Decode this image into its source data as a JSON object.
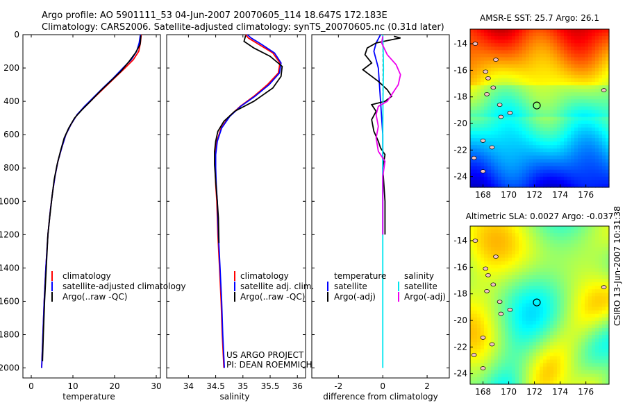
{
  "header": {
    "line1": "Argo profile: AO 5901111_53 04-Jun-2007 20070605_114 18.647S 172.183E",
    "line2": "Climatology: CARS2006. Satellite-adjusted climatology: synTS_20070605.nc (0.31d later)"
  },
  "side_stamp": "CSIRO 13-Jun-2007 10:31:38",
  "colors": {
    "climatology": "#ff0000",
    "satellite": "#0000ff",
    "argo": "#000000",
    "satellite_salinity": "#00e5ee",
    "argo_salinity": "#ee00ee"
  },
  "chart_data": [
    {
      "type": "line",
      "id": "temperature",
      "xlabel": "temperature",
      "ylabel": "depth",
      "xlim": [
        -2,
        31
      ],
      "ylim": [
        2060,
        0
      ],
      "xticks": [
        0,
        10,
        20,
        30
      ],
      "yticks": [
        0,
        200,
        400,
        600,
        800,
        1000,
        1200,
        1400,
        1600,
        1800,
        2000
      ],
      "legend": [
        "climatology",
        "satellite-adjusted climatology",
        "Argo(..raw -QC)"
      ],
      "series": [
        {
          "name": "climatology",
          "color": "climatology",
          "points": [
            [
              26.4,
              0
            ],
            [
              26.2,
              50
            ],
            [
              25.8,
              100
            ],
            [
              24.5,
              150
            ],
            [
              22.5,
              200
            ],
            [
              20,
              260
            ],
            [
              17.5,
              320
            ],
            [
              15,
              380
            ],
            [
              13,
              430
            ],
            [
              11,
              480
            ],
            [
              9.5,
              540
            ],
            [
              8.3,
              600
            ],
            [
              7.3,
              680
            ],
            [
              6.4,
              760
            ],
            [
              5.7,
              850
            ],
            [
              5.1,
              950
            ],
            [
              4.6,
              1050
            ],
            [
              4.0,
              1200
            ],
            [
              3.5,
              1400
            ],
            [
              3.1,
              1600
            ],
            [
              2.8,
              1800
            ],
            [
              2.5,
              2000
            ]
          ]
        },
        {
          "name": "satellite-adjusted climatology",
          "color": "satellite",
          "points": [
            [
              26.2,
              0
            ],
            [
              25.9,
              50
            ],
            [
              25.3,
              100
            ],
            [
              24.0,
              150
            ],
            [
              22.0,
              200
            ],
            [
              19.7,
              260
            ],
            [
              17.2,
              320
            ],
            [
              14.8,
              380
            ],
            [
              12.8,
              430
            ],
            [
              11,
              480
            ],
            [
              9.5,
              540
            ],
            [
              8.3,
              600
            ],
            [
              7.3,
              680
            ],
            [
              6.4,
              760
            ],
            [
              5.7,
              850
            ],
            [
              5.1,
              950
            ],
            [
              4.6,
              1050
            ],
            [
              4.0,
              1200
            ],
            [
              3.5,
              1400
            ],
            [
              3.1,
              1600
            ],
            [
              2.8,
              1800
            ],
            [
              2.5,
              2000
            ]
          ]
        },
        {
          "name": "Argo(..raw -QC)",
          "color": "argo",
          "points": [
            [
              26.3,
              5
            ],
            [
              26.2,
              40
            ],
            [
              26.1,
              60
            ],
            [
              25.0,
              110
            ],
            [
              23.5,
              160
            ],
            [
              21.5,
              220
            ],
            [
              19.0,
              280
            ],
            [
              16.5,
              340
            ],
            [
              14.2,
              400
            ],
            [
              12.2,
              450
            ],
            [
              10.4,
              500
            ],
            [
              9.0,
              560
            ],
            [
              7.9,
              620
            ],
            [
              7.0,
              700
            ],
            [
              6.2,
              780
            ],
            [
              5.5,
              870
            ],
            [
              5.0,
              970
            ],
            [
              4.5,
              1080
            ],
            [
              4.0,
              1200
            ],
            [
              3.6,
              1400
            ],
            [
              3.2,
              1600
            ],
            [
              2.9,
              1800
            ],
            [
              2.7,
              1960
            ]
          ]
        }
      ]
    },
    {
      "type": "line",
      "id": "salinity",
      "xlabel": "salinity",
      "ylabel": "depth",
      "xlim": [
        33.6,
        36.15
      ],
      "ylim": [
        2060,
        0
      ],
      "xticks": [
        34,
        34.5,
        35,
        35.5,
        36
      ],
      "yticks": [
        0,
        200,
        400,
        600,
        800,
        1000,
        1200,
        1400,
        1600,
        1800,
        2000
      ],
      "legend": [
        "climatology",
        "satellite adj. clim.",
        "Argo(..raw -QC)"
      ],
      "series": [
        {
          "name": "climatology",
          "color": "climatology",
          "points": [
            [
              35.05,
              0
            ],
            [
              35.1,
              20
            ],
            [
              35.3,
              60
            ],
            [
              35.55,
              110
            ],
            [
              35.68,
              170
            ],
            [
              35.65,
              230
            ],
            [
              35.45,
              300
            ],
            [
              35.2,
              370
            ],
            [
              34.95,
              430
            ],
            [
              34.75,
              490
            ],
            [
              34.6,
              560
            ],
            [
              34.52,
              640
            ],
            [
              34.49,
              720
            ],
            [
              34.49,
              800
            ],
            [
              34.5,
              900
            ],
            [
              34.52,
              1000
            ],
            [
              34.54,
              1200
            ],
            [
              34.57,
              1400
            ],
            [
              34.6,
              1600
            ],
            [
              34.62,
              1800
            ],
            [
              34.65,
              2000
            ]
          ]
        },
        {
          "name": "satellite adj. clim.",
          "color": "satellite",
          "points": [
            [
              35.08,
              0
            ],
            [
              35.15,
              20
            ],
            [
              35.35,
              60
            ],
            [
              35.58,
              110
            ],
            [
              35.7,
              170
            ],
            [
              35.67,
              230
            ],
            [
              35.48,
              300
            ],
            [
              35.22,
              370
            ],
            [
              34.96,
              430
            ],
            [
              34.76,
              490
            ],
            [
              34.61,
              560
            ],
            [
              34.53,
              640
            ],
            [
              34.5,
              720
            ],
            [
              34.5,
              800
            ],
            [
              34.51,
              900
            ],
            [
              34.53,
              1000
            ],
            [
              34.55,
              1200
            ],
            [
              34.58,
              1400
            ],
            [
              34.61,
              1600
            ],
            [
              34.63,
              1800
            ],
            [
              34.66,
              2000
            ]
          ]
        },
        {
          "name": "Argo(..raw -QC)",
          "color": "argo",
          "points": [
            [
              35.05,
              5
            ],
            [
              35.02,
              40
            ],
            [
              35.2,
              80
            ],
            [
              35.5,
              130
            ],
            [
              35.72,
              190
            ],
            [
              35.7,
              250
            ],
            [
              35.55,
              320
            ],
            [
              35.2,
              400
            ],
            [
              34.85,
              460
            ],
            [
              34.65,
              520
            ],
            [
              34.54,
              580
            ],
            [
              34.5,
              640
            ],
            [
              34.48,
              700
            ],
            [
              34.48,
              780
            ],
            [
              34.5,
              880
            ],
            [
              34.53,
              1000
            ],
            [
              34.55,
              1100
            ],
            [
              34.56,
              1250
            ]
          ]
        }
      ]
    },
    {
      "type": "line",
      "id": "difference",
      "xlabel": "difference from climatology",
      "ylabel": "depth",
      "xlim": [
        -3.2,
        3.0
      ],
      "ylim": [
        2060,
        0
      ],
      "xticks": [
        -2,
        0,
        2
      ],
      "yticks": [
        0,
        200,
        400,
        600,
        800,
        1000,
        1200,
        1400,
        1600,
        1800,
        2000
      ],
      "legend_groups": [
        {
          "title": "temperature",
          "items": [
            "satellite",
            "Argo(-adj)"
          ]
        },
        {
          "title": "salinity",
          "items": [
            "satellite",
            "Argo(-adj)"
          ]
        }
      ],
      "series": [
        {
          "name": "temperature satellite",
          "color": "satellite",
          "points": [
            [
              -0.1,
              0
            ],
            [
              -0.3,
              50
            ],
            [
              -0.4,
              100
            ],
            [
              -0.3,
              150
            ],
            [
              -0.2,
              200
            ],
            [
              -0.15,
              300
            ],
            [
              -0.1,
              400
            ],
            [
              -0.05,
              500
            ],
            [
              0,
              600
            ],
            [
              0,
              800
            ],
            [
              0,
              1000
            ],
            [
              0,
              1200
            ]
          ]
        },
        {
          "name": "temperature Argo(-adj)",
          "color": "argo",
          "points": [
            [
              0.5,
              10
            ],
            [
              0.8,
              20
            ],
            [
              0.4,
              30
            ],
            [
              -0.3,
              50
            ],
            [
              -0.7,
              80
            ],
            [
              -0.8,
              120
            ],
            [
              -0.5,
              170
            ],
            [
              -0.9,
              210
            ],
            [
              -0.6,
              240
            ],
            [
              -0.2,
              280
            ],
            [
              0.2,
              330
            ],
            [
              0.4,
              370
            ],
            [
              0.1,
              400
            ],
            [
              -0.5,
              420
            ],
            [
              -0.3,
              460
            ],
            [
              -0.5,
              510
            ],
            [
              -0.4,
              580
            ],
            [
              -0.2,
              640
            ],
            [
              -0.1,
              680
            ],
            [
              0.1,
              720
            ],
            [
              0,
              800
            ],
            [
              0.05,
              900
            ],
            [
              0.1,
              1000
            ],
            [
              0.1,
              1100
            ],
            [
              0.1,
              1200
            ]
          ]
        },
        {
          "name": "salinity satellite",
          "color": "satellite_salinity",
          "points": [
            [
              0,
              0
            ],
            [
              0.02,
              100
            ],
            [
              0.03,
              200
            ],
            [
              0.02,
              300
            ],
            [
              0.01,
              400
            ],
            [
              0,
              600
            ],
            [
              0,
              800
            ],
            [
              0,
              1000
            ],
            [
              0,
              1400
            ],
            [
              0,
              1800
            ],
            [
              0,
              2000
            ]
          ]
        },
        {
          "name": "salinity Argo(-adj)",
          "color": "argo_salinity",
          "points": [
            [
              0,
              10
            ],
            [
              -0.05,
              50
            ],
            [
              0.2,
              120
            ],
            [
              0.6,
              180
            ],
            [
              0.8,
              240
            ],
            [
              0.7,
              300
            ],
            [
              0.4,
              360
            ],
            [
              0.2,
              400
            ],
            [
              -0.2,
              430
            ],
            [
              -0.3,
              480
            ],
            [
              -0.2,
              550
            ],
            [
              -0.3,
              620
            ],
            [
              -0.2,
              700
            ],
            [
              0.1,
              760
            ],
            [
              0,
              850
            ],
            [
              0,
              1000
            ],
            [
              0,
              1200
            ]
          ]
        }
      ]
    },
    {
      "type": "heatmap",
      "id": "sst-map",
      "title_prefix": "AMSR-E SST:",
      "title_value": "25.7",
      "title_mid": "Argo:",
      "title_argo": "26.1",
      "xlim": [
        167,
        177.8
      ],
      "ylim": [
        -24.8,
        -12.9
      ],
      "xticks": [
        168,
        170,
        172,
        174,
        176
      ],
      "yticks": [
        -14,
        -16,
        -18,
        -20,
        -22,
        -24
      ],
      "xtick_labels": [
        "168",
        "170",
        "172",
        "174",
        "176"
      ],
      "ytick_labels": [
        "-14",
        "-16",
        "-18",
        "-20",
        "-22",
        "-24"
      ],
      "profile_location": [
        172.183,
        -18.647
      ],
      "colormap": "jet"
    },
    {
      "type": "heatmap",
      "id": "sla-map",
      "title_prefix": "Altimetric SLA:",
      "title_value": "0.0027",
      "title_mid": "Argo:",
      "title_argo": "-0.037",
      "xlim": [
        167,
        177.8
      ],
      "ylim": [
        -24.8,
        -12.9
      ],
      "xticks": [
        168,
        170,
        172,
        174,
        176
      ],
      "yticks": [
        -14,
        -16,
        -18,
        -20,
        -22,
        -24
      ],
      "xtick_labels": [
        "168",
        "170",
        "172",
        "174",
        "176"
      ],
      "ytick_labels": [
        "-14",
        "-16",
        "-18",
        "-20",
        "-22",
        "-24"
      ],
      "profile_location": [
        172.183,
        -18.647
      ],
      "colormap": "jet"
    }
  ],
  "annotations": {
    "project_line1": "US ARGO PROJECT",
    "project_line2": "PI: DEAN ROEMMICH"
  }
}
